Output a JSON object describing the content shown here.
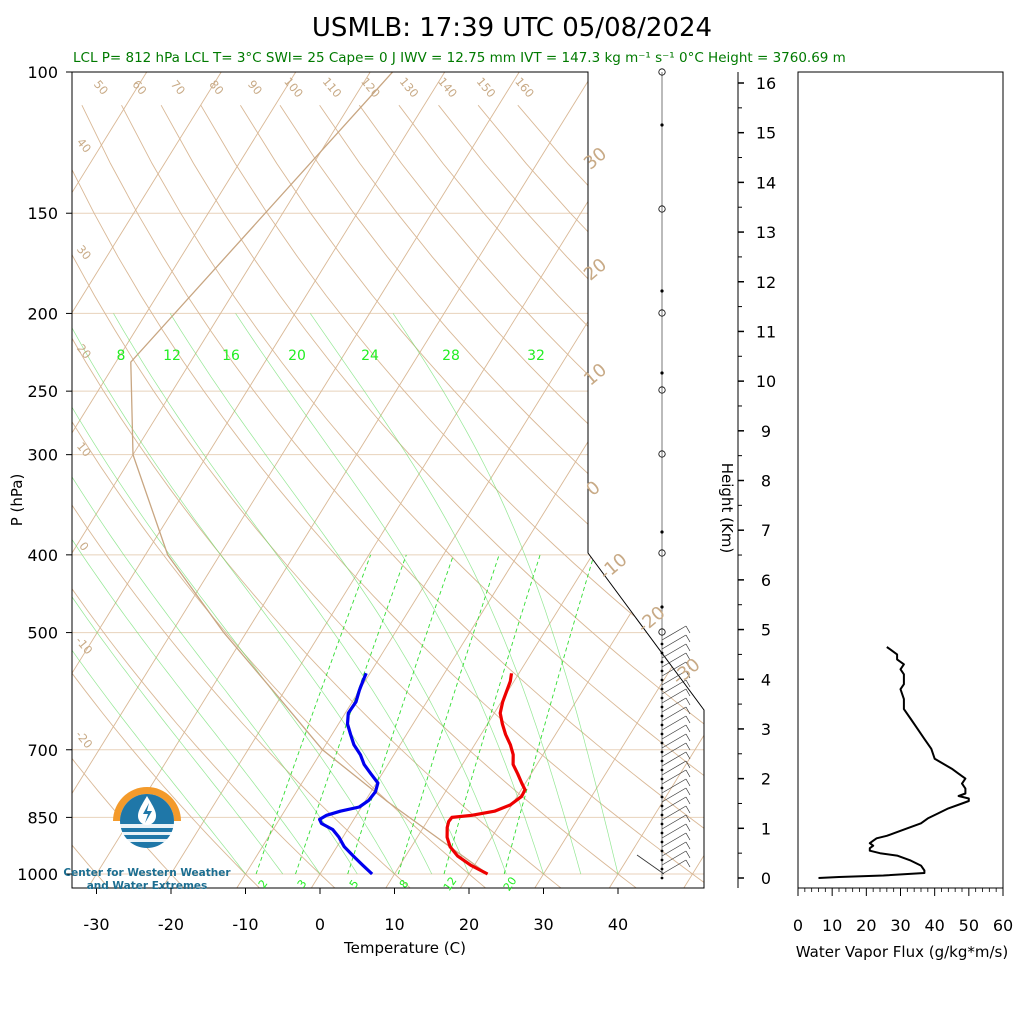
{
  "title": "USMLB: 17:39 UTC 05/08/2024",
  "stats_line": "LCL P= 812 hPa  LCL T= 3°C  SWI= 25  Cape= 0 J  IWV = 12.75 mm  IVT = 147.3 kg m⁻¹ s⁻¹  0°C Height = 3760.69 m",
  "logo": {
    "line1": "Center for Western Weather",
    "line2": "and Water Extremes",
    "colors": {
      "orange": "#f39a2b",
      "blue": "#1f77a8",
      "dark": "#1b4f72"
    }
  },
  "colors": {
    "temperature": "#ee0000",
    "dewpoint": "#0000ee",
    "isotherm": "#d9b896",
    "mixing_ratio": "#33dd33",
    "parcel": "#c8a682",
    "grid": "#e8d2bb"
  },
  "chart_data": [
    {
      "type": "skew-t",
      "xlabel": "Temperature (C)",
      "ylabel": "P (hPa)",
      "x_ticks": [
        -30,
        -20,
        -10,
        0,
        10,
        20,
        30,
        40
      ],
      "p_ticks": [
        100,
        150,
        200,
        250,
        300,
        400,
        500,
        700,
        850,
        1000
      ],
      "isotherm_labels_top": [
        50,
        60,
        70,
        80,
        90,
        100,
        110,
        120,
        130,
        140,
        150,
        160
      ],
      "isotherm_labels_left": [
        40,
        30,
        20,
        10,
        0,
        -10,
        -20
      ],
      "isotherm_labels_right": [
        30,
        20,
        10,
        0,
        -10,
        -20,
        -30
      ],
      "mixing_ratio_labels_top": [
        8,
        12,
        16,
        20,
        24,
        28,
        32
      ],
      "mixing_ratio_labels_bottom": [
        2,
        3,
        5,
        8,
        12,
        20
      ],
      "series": [
        {
          "name": "temperature",
          "p": [
            1000,
            975,
            950,
            925,
            900,
            875,
            860,
            850,
            845,
            835,
            820,
            800,
            785,
            770,
            750,
            730,
            710,
            690,
            670,
            650,
            630,
            610,
            590,
            575,
            562
          ],
          "t": [
            22.5,
            19.5,
            17.0,
            15.2,
            14.0,
            13.2,
            12.9,
            13.0,
            15.5,
            18.2,
            19.8,
            20.6,
            20.5,
            19.5,
            18.2,
            16.8,
            16.0,
            14.8,
            13.3,
            12.0,
            10.8,
            10.2,
            9.8,
            9.5,
            9.0
          ]
        },
        {
          "name": "dewpoint",
          "p": [
            1000,
            975,
            950,
            925,
            900,
            880,
            865,
            855,
            845,
            835,
            825,
            810,
            790,
            770,
            750,
            730,
            710,
            690,
            670,
            650,
            630,
            610,
            590,
            575,
            562
          ],
          "t": [
            7.0,
            5.0,
            3.0,
            1.0,
            -0.5,
            -2.0,
            -4.0,
            -4.6,
            -4.0,
            -2.5,
            -0.3,
            0.4,
            0.6,
            0.2,
            -1.5,
            -3.2,
            -4.5,
            -6.2,
            -7.5,
            -8.8,
            -9.6,
            -9.5,
            -10.0,
            -10.3,
            -10.5
          ]
        },
        {
          "name": "parcel",
          "p": [
            1000,
            812,
            700,
            600,
            500,
            400,
            300,
            230,
            100
          ],
          "t": [
            22.5,
            3.0,
            -10.0,
            -20.5,
            -33.0,
            -47.0,
            -60.0,
            -68.0,
            -57.0
          ]
        }
      ]
    },
    {
      "type": "line",
      "xlabel": "Water Vapor Flux (g/kg*m/s)",
      "ylabel": "Height (Km)",
      "x_ticks": [
        0,
        10,
        20,
        30,
        40,
        50,
        60
      ],
      "y_ticks": [
        0,
        1,
        2,
        3,
        4,
        5,
        6,
        7,
        8,
        9,
        10,
        11,
        12,
        13,
        14,
        15,
        16
      ],
      "xlim": [
        0,
        60
      ],
      "ylim": [
        -0.1,
        16.3
      ],
      "height_km": [
        0.0,
        0.02,
        0.05,
        0.1,
        0.15,
        0.25,
        0.35,
        0.45,
        0.5,
        0.55,
        0.6,
        0.65,
        0.7,
        0.75,
        0.8,
        0.85,
        0.9,
        1.0,
        1.1,
        1.2,
        1.3,
        1.4,
        1.5,
        1.55,
        1.6,
        1.65,
        1.7,
        1.8,
        1.9,
        2.0,
        2.1,
        2.2,
        2.4,
        2.6,
        2.8,
        3.0,
        3.2,
        3.4,
        3.6,
        3.8,
        3.9,
        4.0,
        4.1,
        4.2,
        4.3,
        4.4,
        4.5,
        4.6,
        4.65
      ],
      "flux": [
        6,
        12,
        25,
        37,
        37,
        36,
        33,
        29,
        24,
        21,
        21,
        22,
        21,
        22,
        23,
        26,
        28,
        32,
        36,
        38,
        41,
        44,
        48,
        50,
        50,
        47,
        49,
        49,
        48,
        49,
        47,
        45,
        40,
        39,
        37,
        35,
        33,
        31,
        31,
        30,
        31,
        31,
        31,
        30,
        31,
        29,
        29,
        27,
        26
      ]
    }
  ]
}
